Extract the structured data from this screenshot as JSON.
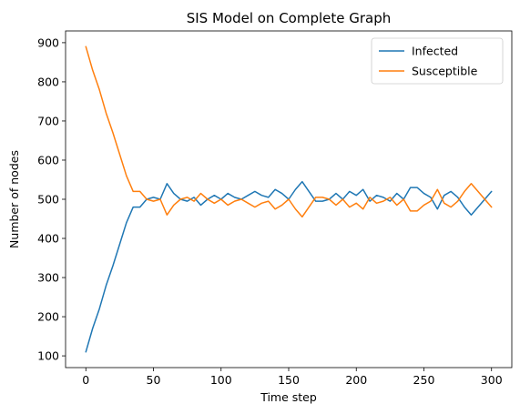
{
  "chart_data": {
    "type": "line",
    "title": "SIS Model on Complete Graph",
    "xlabel": "Time step",
    "ylabel": "Number of nodes",
    "xlim": [
      -15,
      315
    ],
    "ylim": [
      70,
      930
    ],
    "xticks": [
      0,
      50,
      100,
      150,
      200,
      250,
      300
    ],
    "yticks": [
      100,
      200,
      300,
      400,
      500,
      600,
      700,
      800,
      900
    ],
    "grid": false,
    "legend_position": "top-right",
    "x": [
      0,
      5,
      10,
      15,
      20,
      25,
      30,
      35,
      40,
      45,
      50,
      55,
      60,
      65,
      70,
      75,
      80,
      85,
      90,
      95,
      100,
      105,
      110,
      115,
      120,
      125,
      130,
      135,
      140,
      145,
      150,
      155,
      160,
      165,
      170,
      175,
      180,
      185,
      190,
      195,
      200,
      205,
      210,
      215,
      220,
      225,
      230,
      235,
      240,
      245,
      250,
      255,
      260,
      265,
      270,
      275,
      280,
      285,
      290,
      295,
      300
    ],
    "series": [
      {
        "name": "Infected",
        "color": "#1f77b4",
        "values": [
          110,
          170,
          220,
          280,
          330,
          385,
          440,
          480,
          480,
          500,
          505,
          500,
          540,
          515,
          500,
          495,
          505,
          485,
          500,
          510,
          500,
          515,
          505,
          500,
          510,
          520,
          510,
          505,
          525,
          515,
          500,
          525,
          545,
          520,
          495,
          495,
          500,
          515,
          500,
          520,
          510,
          525,
          495,
          510,
          505,
          495,
          515,
          500,
          530,
          530,
          515,
          505,
          475,
          510,
          520,
          505,
          480,
          460,
          480,
          500,
          520
        ]
      },
      {
        "name": "Susceptible",
        "color": "#ff7f0e",
        "values": [
          890,
          830,
          780,
          720,
          670,
          615,
          560,
          520,
          520,
          500,
          495,
          500,
          460,
          485,
          500,
          505,
          495,
          515,
          500,
          490,
          500,
          485,
          495,
          500,
          490,
          480,
          490,
          495,
          475,
          485,
          500,
          475,
          455,
          480,
          505,
          505,
          500,
          485,
          500,
          480,
          490,
          475,
          505,
          490,
          495,
          505,
          485,
          500,
          470,
          470,
          485,
          495,
          525,
          490,
          480,
          495,
          520,
          540,
          520,
          500,
          480
        ]
      }
    ]
  }
}
